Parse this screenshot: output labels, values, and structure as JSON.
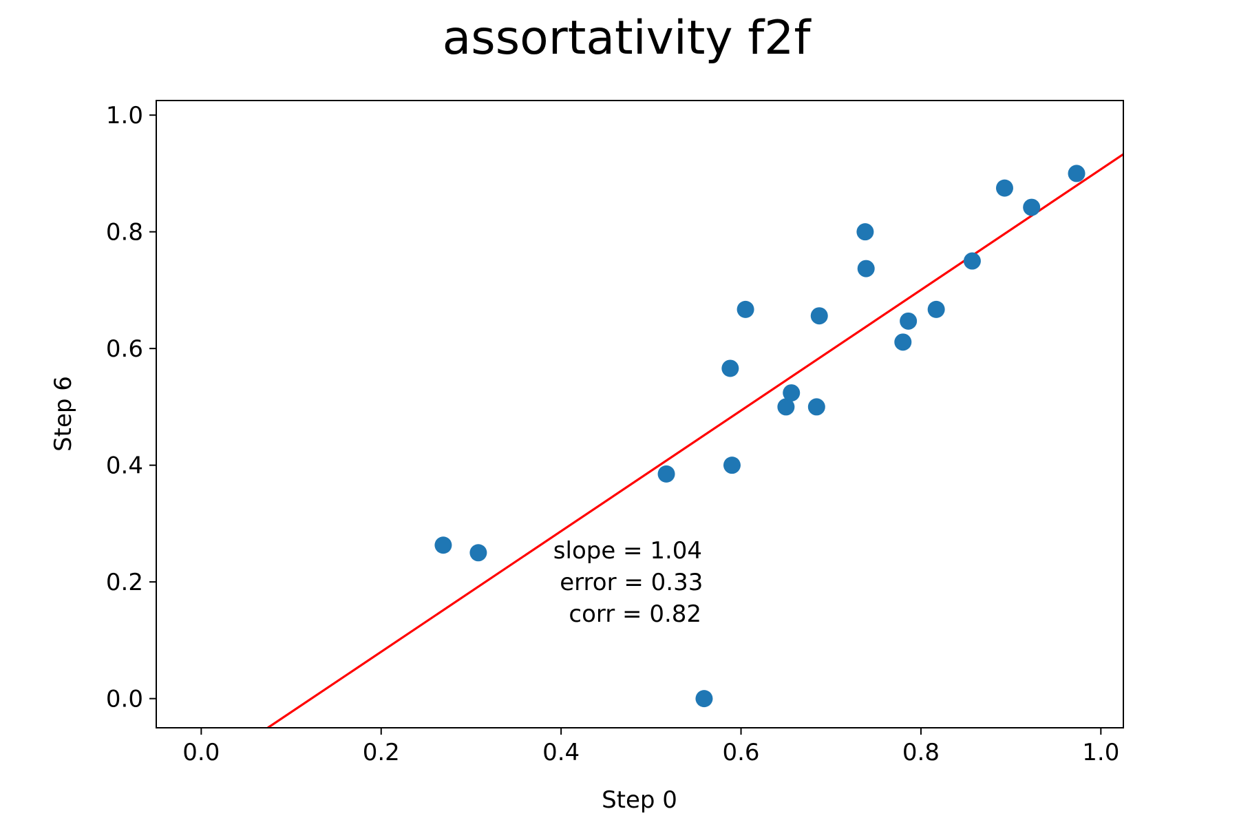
{
  "chart_data": {
    "type": "scatter",
    "title": "assortativity f2f",
    "xlabel": "Step 0",
    "ylabel": "Step 6",
    "xlim": [
      -0.05,
      1.025
    ],
    "ylim": [
      -0.05,
      1.025
    ],
    "x_ticks": [
      0.0,
      0.2,
      0.4,
      0.6,
      0.8,
      1.0
    ],
    "y_ticks": [
      0.0,
      0.2,
      0.4,
      0.6,
      0.8,
      1.0
    ],
    "x_tick_labels": [
      "0.0",
      "0.2",
      "0.4",
      "0.6",
      "0.8",
      "1.0"
    ],
    "y_tick_labels": [
      "0.0",
      "0.2",
      "0.4",
      "0.6",
      "0.8",
      "1.0"
    ],
    "grid": false,
    "legend": "none",
    "series": [
      {
        "type": "scatter",
        "color": "#1f77b4",
        "points": [
          {
            "x": 0.269,
            "y": 0.263
          },
          {
            "x": 0.308,
            "y": 0.25
          },
          {
            "x": 0.517,
            "y": 0.385
          },
          {
            "x": 0.559,
            "y": 0.0
          },
          {
            "x": 0.588,
            "y": 0.566
          },
          {
            "x": 0.59,
            "y": 0.4
          },
          {
            "x": 0.605,
            "y": 0.667
          },
          {
            "x": 0.65,
            "y": 0.5
          },
          {
            "x": 0.656,
            "y": 0.524
          },
          {
            "x": 0.684,
            "y": 0.5
          },
          {
            "x": 0.687,
            "y": 0.656
          },
          {
            "x": 0.738,
            "y": 0.8
          },
          {
            "x": 0.739,
            "y": 0.737
          },
          {
            "x": 0.78,
            "y": 0.611
          },
          {
            "x": 0.786,
            "y": 0.647
          },
          {
            "x": 0.817,
            "y": 0.667
          },
          {
            "x": 0.857,
            "y": 0.75
          },
          {
            "x": 0.893,
            "y": 0.875
          },
          {
            "x": 0.923,
            "y": 0.842
          },
          {
            "x": 0.973,
            "y": 0.9
          }
        ]
      },
      {
        "type": "line",
        "color": "#ff0000",
        "x": [
          0.074,
          1.025
        ],
        "y": [
          -0.05,
          0.933
        ]
      }
    ],
    "annotation": {
      "lines": [
        "slope = 1.04",
        " error = 0.33",
        "corr = 0.82"
      ],
      "x": 0.503,
      "y": 0.2
    }
  }
}
